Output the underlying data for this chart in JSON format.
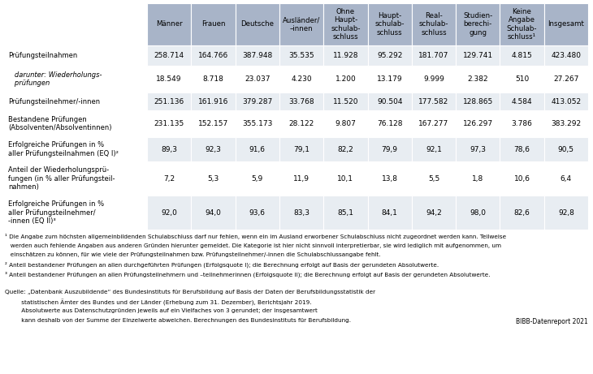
{
  "col_headers": [
    "Männer",
    "Frauen",
    "Deutsche",
    "Ausländer/\n–innen",
    "Ohne\nHaupt-\nschulab-\nschluss",
    "Haupt-\nschulab-\nschluss",
    "Real-\nschulab-\nschluss",
    "Studien-\nberechi-\ngung",
    "Keine\nAngabe\nSchulab-\nschluss¹",
    "Insgesamt"
  ],
  "row_labels": [
    "Prüfungsteilnahmen",
    "   darunter: Wiederholungs-\n   prüfungen",
    "Prüfungsteilnehmer/-innen",
    "Bestandene Prüfungen\n(Absolventen/Absolventinnen)",
    "Erfolgreiche Prüfungen in %\naller Prüfungsteilnahmen (EQ I)²",
    "Anteil der Wiederholungsprü-\nfungen (in % aller Prüfungsteil-\nnahmen)",
    "Erfolgreiche Prüfungen in %\naller Prüfungsteilnehmer/\n-innen (EQ II)³"
  ],
  "row_italic": [
    false,
    true,
    false,
    false,
    false,
    false,
    false
  ],
  "data": [
    [
      "258.714",
      "164.766",
      "387.948",
      "35.535",
      "11.928",
      "95.292",
      "181.707",
      "129.741",
      "4.815",
      "423.480"
    ],
    [
      "18.549",
      "8.718",
      "23.037",
      "4.230",
      "1.200",
      "13.179",
      "9.999",
      "2.382",
      "510",
      "27.267"
    ],
    [
      "251.136",
      "161.916",
      "379.287",
      "33.768",
      "11.520",
      "90.504",
      "177.582",
      "128.865",
      "4.584",
      "413.052"
    ],
    [
      "231.135",
      "152.157",
      "355.173",
      "28.122",
      "9.807",
      "76.128",
      "167.277",
      "126.297",
      "3.786",
      "383.292"
    ],
    [
      "89,3",
      "92,3",
      "91,6",
      "79,1",
      "82,2",
      "79,9",
      "92,1",
      "97,3",
      "78,6",
      "90,5"
    ],
    [
      "7,2",
      "5,3",
      "5,9",
      "11,9",
      "10,1",
      "13,8",
      "5,5",
      "1,8",
      "10,6",
      "6,4"
    ],
    [
      "92,0",
      "94,0",
      "93,6",
      "83,3",
      "85,1",
      "84,1",
      "94,2",
      "98,0",
      "82,6",
      "92,8"
    ]
  ],
  "row_bg": [
    "#e8edf2",
    "#ffffff",
    "#e8edf2",
    "#ffffff",
    "#e8edf2",
    "#ffffff",
    "#e8edf2"
  ],
  "footnote1": "¹ Die Angabe zum höchsten allgemeinbildenden Schulabschluss darf nur fehlen, wenn ein im Ausland erworbener Schulabschluss nicht zugeordnet werden kann. Teilweise",
  "footnote1b": "   werden auch fehlende Angaben aus anderen Gründen hierunter gemeldet. Die Kategorie ist hier nicht sinnvoll interpretierbar, sie wird lediglich mit aufgenommen, um",
  "footnote1c": "   einschätzen zu können, für wie viele der Prüfungsteilnahmen bzw. Prüfungsteilnehmer/-innen die Schulabschlussangabe fehlt.",
  "footnote2": "² Anteil bestandener Prüfungen an allen durchgeführten Prüfungen (Erfolgsquote I); die Berechnung erfolgt auf Basis der gerundeten Absolutwerte.",
  "footnote3": "³ Anteil bestandener Prüfungen an allen Prüfungsteilnehmern und –teilnehmerinnen (Erfolgsquote II); die Berechnung erfolgt auf Basis der gerundeten Absolutwerte.",
  "source1": "Quelle: „Datenbank Auszubildende“ des Bundesinstituts für Berufsbildung auf Basis der Daten der Berufsbildungsstatistik der",
  "source2": "         statistischen Ämter des Bundes und der Länder (Erhebung zum 31. Dezember), Berichtsjahr 2019.",
  "source3": "         Absolutwerte aus Datenschutzgründen jeweils auf ein Vielfaches von 3 gerundet; der Insgesamtwert",
  "source4": "         kann deshalb von der Summe der Einzelwerte abweichen. Berechnungen des Bundesinstituts für Berufsbildung.",
  "bibb": "BIBB-Datenreport 2021",
  "header_bg": "#a8b4c8",
  "border_color": "#ffffff",
  "fig_bg": "#ffffff"
}
